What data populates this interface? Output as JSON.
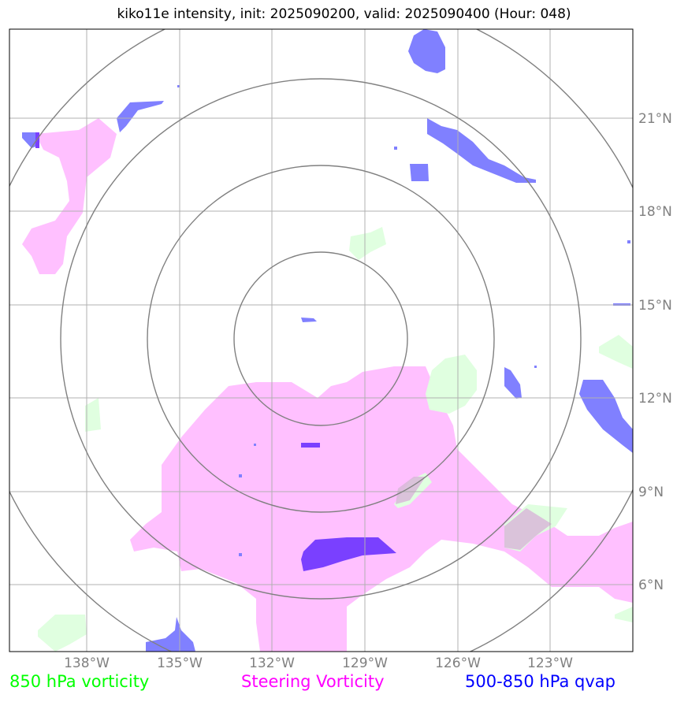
{
  "title": "kiko11e intensity, init: 2025090200, valid: 2025090400 (Hour: 048)",
  "map": {
    "projection": "storm-centered",
    "center_ring_labels": [],
    "longitude_labels": [
      "138°W",
      "135°W",
      "132°W",
      "129°W",
      "126°W",
      "123°W"
    ],
    "latitude_labels": [
      "21°N",
      "18°N",
      "15°N",
      "12°N",
      "9°N",
      "6°N"
    ]
  },
  "legend": {
    "vorticity_850": {
      "label": "850 hPa vorticity",
      "color": "#00ff00"
    },
    "steering_vorticity": {
      "label": "Steering Vorticity",
      "color": "#ff00ff"
    },
    "qvap": {
      "label": "500-850 hPa qvap",
      "color": "#0000ff"
    }
  },
  "colors": {
    "steering_fill": "#ffc0ff",
    "vort850_fill": "#e0ffe0",
    "qvap_fill": "#8080ff",
    "qvap_dark": "#7a40ff",
    "grid": "#b0b0b0",
    "ring": "#808080"
  }
}
